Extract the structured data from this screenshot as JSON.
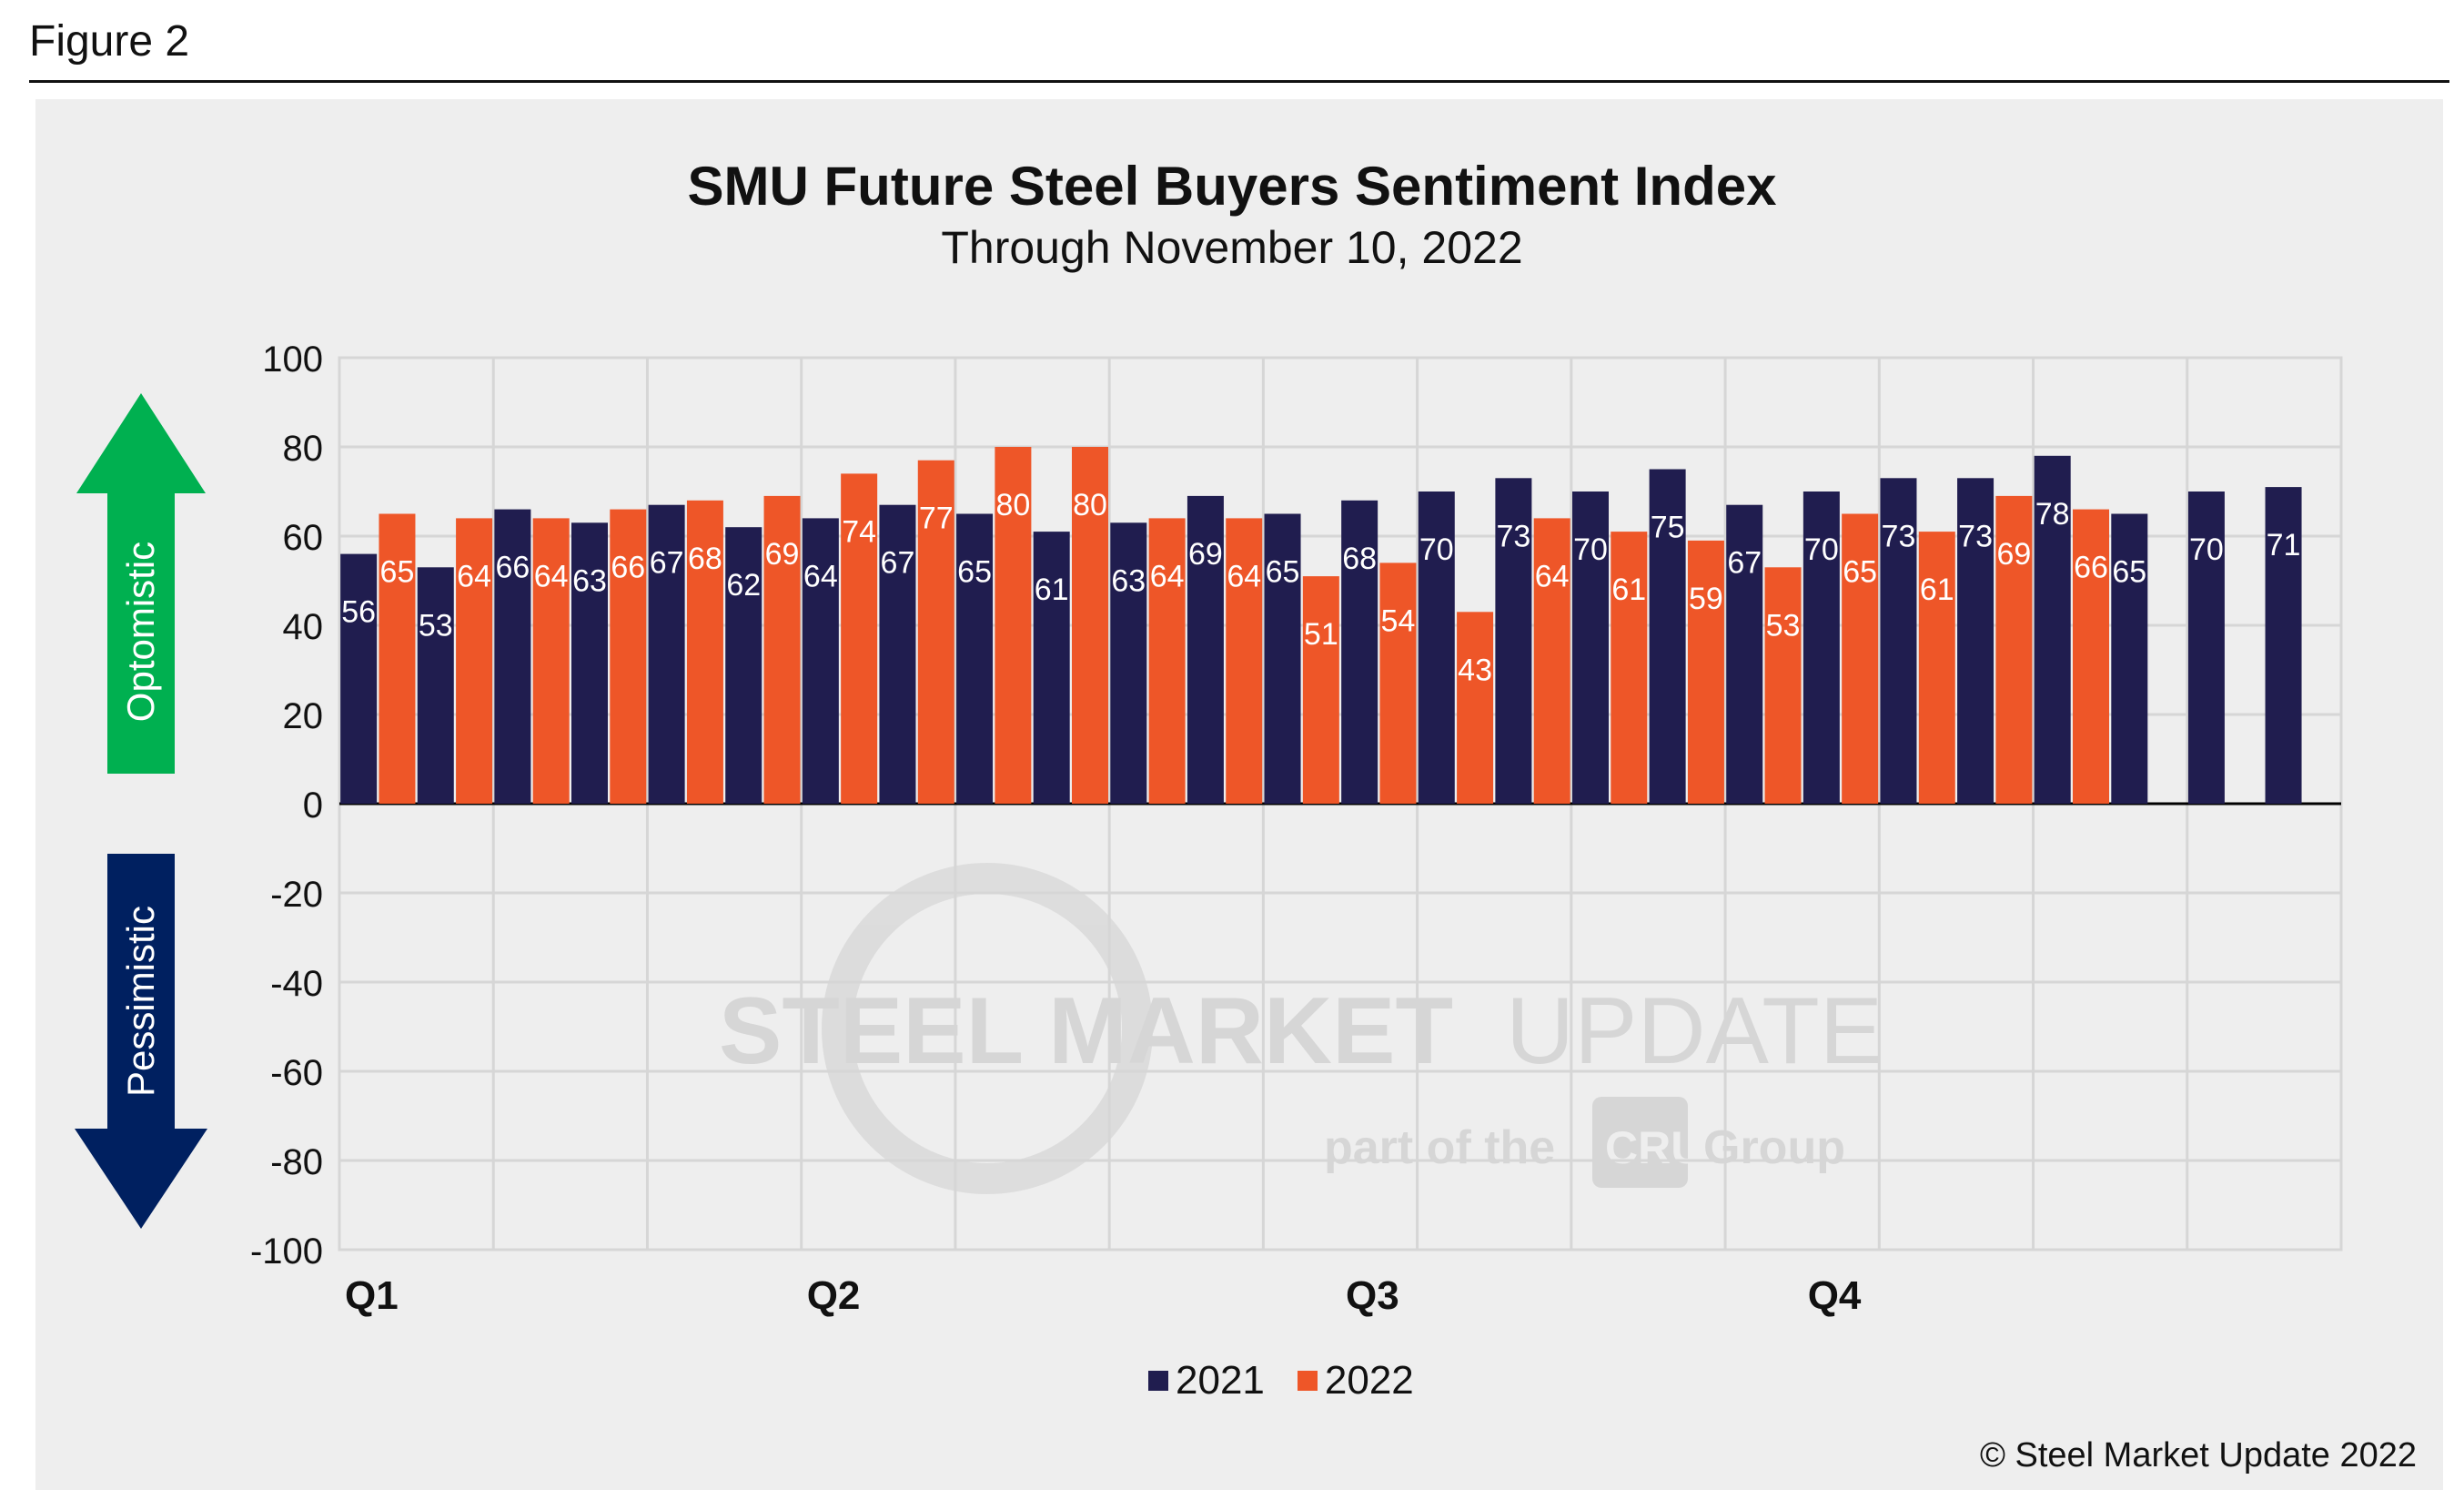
{
  "figure_label": "Figure 2",
  "copyright": "© Steel Market Update 2022",
  "watermark": {
    "main_bold": "STEEL MARKET",
    "main_light": "UPDATE",
    "sub_left": "part of the",
    "sub_logo": "CRU",
    "sub_right": "Group"
  },
  "arrows": {
    "up_label": "Optomistic",
    "down_label": "Pessimistic",
    "up_color": "#00b050",
    "down_color": "#002060"
  },
  "colors": {
    "series_2021": "#201d4f",
    "series_2022": "#ee5628",
    "label_text": "#ffffff",
    "grid": "#d6d6d6"
  },
  "chart_data": {
    "type": "bar",
    "title": "SMU Future Steel Buyers Sentiment Index",
    "subtitle": "Through November 10, 2022",
    "ylim": [
      -100,
      100
    ],
    "yticks": [
      100,
      80,
      60,
      40,
      20,
      0,
      -20,
      -40,
      -60,
      -80,
      -100
    ],
    "grid": true,
    "legend_position": "bottom",
    "quarter_labels": [
      "Q1",
      "Q2",
      "Q3",
      "Q4"
    ],
    "series": [
      {
        "name": "2021",
        "values": [
          56,
          53,
          66,
          63,
          67,
          62,
          64,
          67,
          65,
          61,
          63,
          69,
          65,
          68,
          70,
          73,
          70,
          75,
          67,
          70,
          73,
          73,
          78,
          65,
          70,
          71
        ]
      },
      {
        "name": "2022",
        "values": [
          65,
          64,
          64,
          66,
          68,
          69,
          74,
          77,
          80,
          80,
          64,
          64,
          51,
          54,
          43,
          64,
          61,
          59,
          53,
          65,
          61,
          69,
          66
        ]
      }
    ]
  }
}
